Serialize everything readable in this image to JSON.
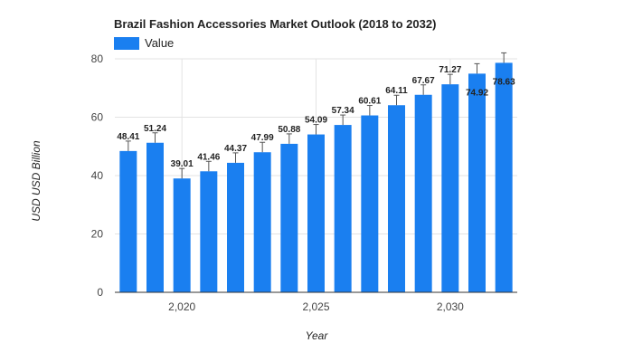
{
  "chart_data": {
    "type": "bar",
    "title": "Brazil Fashion Accessories Market Outlook (2018 to 2032)",
    "xlabel": "Year",
    "ylabel": "USD USD Billion",
    "x": [
      2018,
      2019,
      2020,
      2021,
      2022,
      2023,
      2024,
      2025,
      2026,
      2027,
      2028,
      2029,
      2030,
      2031,
      2032
    ],
    "series": [
      {
        "name": "Value",
        "values": [
          48.41,
          51.24,
          39.01,
          41.46,
          44.37,
          47.99,
          50.88,
          54.09,
          57.34,
          60.61,
          64.11,
          67.67,
          71.27,
          74.92,
          78.63
        ],
        "labels": [
          "48.41",
          "51.24",
          "39.01",
          "41.46",
          "44.37",
          "47.99",
          "50.88",
          "54.09",
          "57.34",
          "60.61",
          "64.11",
          "67.67",
          "71.27",
          "74.92",
          "78.63"
        ]
      }
    ],
    "ylim": [
      0,
      80
    ],
    "xlim": [
      2017.5,
      2032.5
    ],
    "y_ticks": [
      0,
      20,
      40,
      60,
      80
    ],
    "x_ticks": [
      2020,
      2025,
      2030
    ],
    "x_tick_labels": [
      "2,020",
      "2,025",
      "2,030"
    ],
    "grid": true,
    "legend_position": "top-left",
    "colors": {
      "bar": "#1a7ff0",
      "grid": "#e3e3e3",
      "axis": "#333333",
      "error_bar": "#555555"
    }
  }
}
